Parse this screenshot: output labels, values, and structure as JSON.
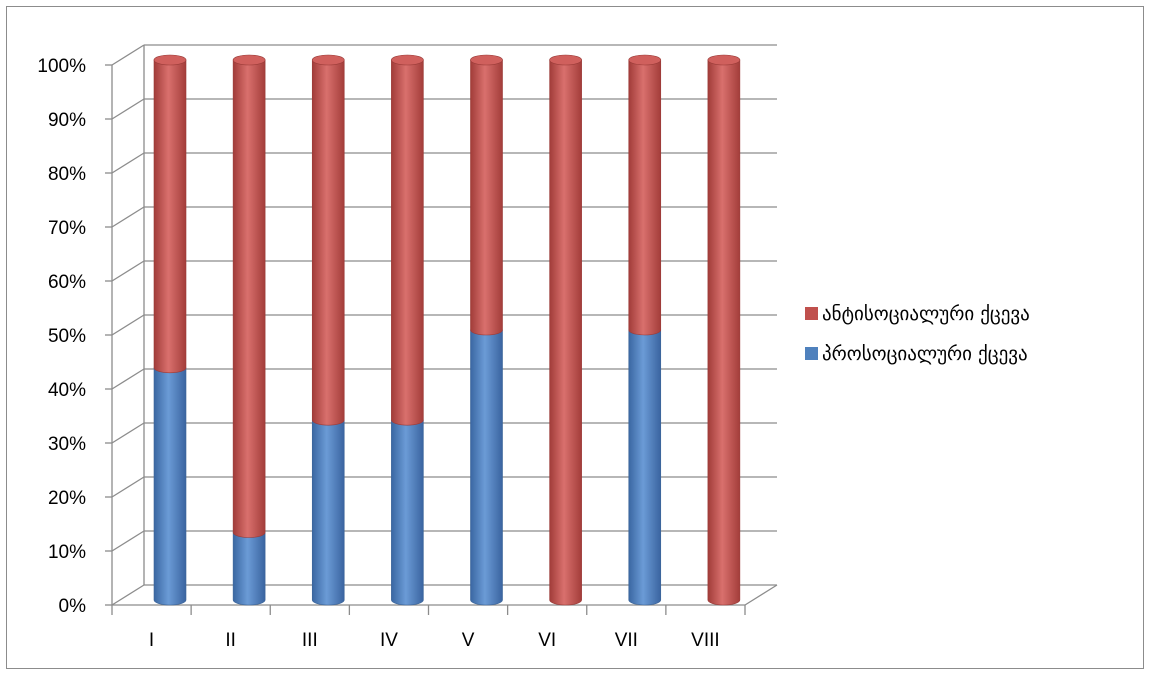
{
  "chart_data": {
    "type": "bar",
    "stacked": true,
    "percent_stacked": true,
    "three_d": "cylinder",
    "categories": [
      "I",
      "II",
      "III",
      "IV",
      "V",
      "VI",
      "VII",
      "VIII"
    ],
    "series": [
      {
        "name": "პროსოციალური ქცევა",
        "color": "#4f81bd",
        "values": [
          43,
          12.5,
          33.3,
          33.3,
          50,
          0,
          50,
          0
        ]
      },
      {
        "name": "ანტისოციალური ქცევა",
        "color": "#c0504d",
        "values": [
          57,
          87.5,
          66.7,
          66.7,
          50,
          100,
          50,
          100
        ]
      }
    ],
    "y_ticks": [
      "0%",
      "10%",
      "20%",
      "30%",
      "40%",
      "50%",
      "60%",
      "70%",
      "80%",
      "90%",
      "100%"
    ],
    "ylim": [
      0,
      100
    ],
    "grid": true,
    "legend": {
      "position": "right",
      "entries": [
        "ანტისოციალური ქცევა",
        "პროსოციალური ქცევა"
      ]
    }
  }
}
